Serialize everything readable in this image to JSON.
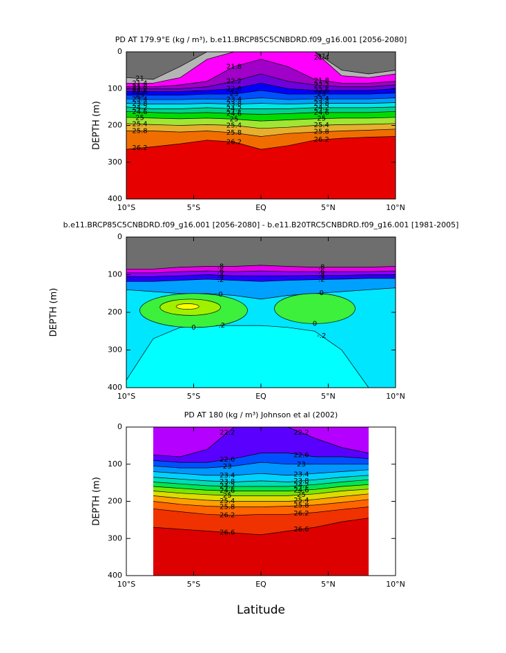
{
  "chart_data": [
    {
      "type": "contour",
      "title": "PD AT 179.9°E (kg / m³), b.e11.BRCP85C5CNBDRD.f09_g16.001 [2056-2080]",
      "ylabel": "DEPTH (m)",
      "xlim": [
        -10,
        10
      ],
      "ylim": [
        0,
        400
      ],
      "y_inverted": true,
      "xticks": [
        {
          "value": -10,
          "label": "10°S"
        },
        {
          "value": -5,
          "label": "5°S"
        },
        {
          "value": 0,
          "label": "EQ"
        },
        {
          "value": 5,
          "label": "5°N"
        },
        {
          "value": 10,
          "label": "10°N"
        }
      ],
      "yticks": [
        0,
        100,
        200,
        300,
        400
      ],
      "top_color": "#6e6e6e",
      "x": [
        -10,
        -8,
        -6,
        -4,
        -2,
        0,
        2,
        4,
        6,
        8,
        10
      ],
      "contours": [
        {
          "level": 21,
          "color": "#b4b4b4",
          "depth": [
            70,
            75,
            40,
            0,
            0,
            0,
            0,
            0,
            50,
            60,
            50
          ]
        },
        {
          "level": 21.4,
          "color": "#ff00ff",
          "depth": [
            85,
            85,
            70,
            20,
            0,
            0,
            0,
            0,
            65,
            70,
            60
          ]
        },
        {
          "level": 21.8,
          "color": "#a000c8",
          "depth": [
            95,
            95,
            90,
            80,
            40,
            20,
            40,
            75,
            85,
            85,
            80
          ]
        },
        {
          "level": 22.2,
          "color": "#6e00dc",
          "depth": [
            100,
            100,
            100,
            95,
            80,
            60,
            80,
            90,
            95,
            95,
            90
          ]
        },
        {
          "level": 22.6,
          "color": "#0000ff",
          "depth": [
            108,
            108,
            108,
            105,
            100,
            85,
            100,
            105,
            105,
            105,
            100
          ]
        },
        {
          "level": 23,
          "color": "#0050ff",
          "depth": [
            118,
            118,
            118,
            115,
            115,
            105,
            115,
            115,
            115,
            115,
            112
          ]
        },
        {
          "level": 23.4,
          "color": "#00a0ff",
          "depth": [
            128,
            130,
            130,
            128,
            130,
            125,
            130,
            128,
            128,
            128,
            125
          ]
        },
        {
          "level": 23.8,
          "color": "#00e6e6",
          "depth": [
            140,
            142,
            142,
            140,
            142,
            140,
            142,
            140,
            140,
            140,
            138
          ]
        },
        {
          "level": 24.2,
          "color": "#00d28c",
          "depth": [
            150,
            155,
            155,
            152,
            155,
            155,
            155,
            152,
            152,
            152,
            150
          ]
        },
        {
          "level": 24.6,
          "color": "#00dc00",
          "depth": [
            162,
            165,
            167,
            165,
            168,
            170,
            168,
            165,
            165,
            165,
            162
          ]
        },
        {
          "level": 25,
          "color": "#a0e632",
          "depth": [
            178,
            180,
            182,
            180,
            183,
            188,
            185,
            182,
            180,
            180,
            178
          ]
        },
        {
          "level": 25.4,
          "color": "#e6af2d",
          "depth": [
            195,
            198,
            200,
            198,
            200,
            208,
            205,
            200,
            198,
            197,
            195
          ]
        },
        {
          "level": 25.8,
          "color": "#f06e00",
          "depth": [
            215,
            215,
            218,
            215,
            220,
            230,
            222,
            218,
            215,
            213,
            210
          ]
        },
        {
          "level": 26.2,
          "color": "#e60000",
          "depth": [
            265,
            258,
            250,
            240,
            245,
            265,
            255,
            240,
            235,
            232,
            230
          ]
        }
      ]
    },
    {
      "type": "contour",
      "title": "b.e11.BRCP85C5CNBDRD.f09_g16.001 [2056-2080] - b.e11.B20TRC5CNBDRD.f09_g16.001 [1981-2005]",
      "ylabel": "DEPTH (m)",
      "xlim": [
        -10,
        10
      ],
      "ylim": [
        0,
        400
      ],
      "y_inverted": true,
      "xticks": [
        {
          "value": -10,
          "label": "10°S"
        },
        {
          "value": -5,
          "label": "5°S"
        },
        {
          "value": 0,
          "label": "EQ"
        },
        {
          "value": 5,
          "label": "5°N"
        },
        {
          "value": 10,
          "label": "10°N"
        }
      ],
      "yticks": [
        0,
        100,
        200,
        300,
        400
      ],
      "top_color": "#6e6e6e",
      "x": [
        -10,
        -8,
        -6,
        -4,
        -2,
        0,
        2,
        4,
        6,
        8,
        10
      ],
      "contours": [
        {
          "level": 0.8,
          "level_label": ".8",
          "color": "#e600e6",
          "depth": [
            85,
            85,
            80,
            78,
            78,
            75,
            78,
            80,
            80,
            80,
            78
          ]
        },
        {
          "level": 0.6,
          "level_label": ".6",
          "color": "#8c00ff",
          "depth": [
            95,
            95,
            92,
            90,
            92,
            90,
            92,
            92,
            92,
            92,
            90
          ]
        },
        {
          "level": 0.4,
          "level_label": ".4",
          "color": "#2800ff",
          "depth": [
            105,
            105,
            103,
            100,
            103,
            103,
            103,
            102,
            102,
            100,
            100
          ]
        },
        {
          "level": 0.2,
          "level_label": ".2",
          "color": "#00a0ff",
          "depth": [
            118,
            118,
            115,
            112,
            115,
            118,
            115,
            113,
            112,
            110,
            110
          ]
        },
        {
          "level": 0,
          "color": "#00e6ff",
          "depth": [
            140,
            145,
            150,
            150,
            155,
            165,
            155,
            150,
            145,
            140,
            135
          ]
        },
        {
          "level": -0.2,
          "level_label": "-.2",
          "color": "#00ffff",
          "depth": [
            380,
            270,
            240,
            235,
            235,
            235,
            240,
            250,
            300,
            400,
            400
          ]
        }
      ],
      "blobs": [
        {
          "level": 0,
          "color": "#3cf03c",
          "x": [
            -9,
            -1
          ],
          "y": [
            150,
            240
          ]
        },
        {
          "level": 0,
          "color": "#3cf03c",
          "x": [
            1,
            7
          ],
          "y": [
            150,
            230
          ]
        },
        {
          "level": 0.2,
          "color": "#a0f000",
          "x": [
            -7.5,
            -3
          ],
          "y": [
            165,
            208
          ]
        },
        {
          "level": 0.4,
          "color": "#ffff00",
          "x": [
            -6.3,
            -4.6
          ],
          "y": [
            177,
            192
          ]
        }
      ]
    },
    {
      "type": "contour",
      "title": "PD AT 180 (kg / m³) Johnson et al (2002)",
      "ylabel": "DEPTH (m)",
      "xlabel": "Latitude",
      "xlim": [
        -10,
        10
      ],
      "ylim": [
        0,
        400
      ],
      "y_inverted": true,
      "xticks": [
        {
          "value": -10,
          "label": "10°S"
        },
        {
          "value": -5,
          "label": "5°S"
        },
        {
          "value": 0,
          "label": "EQ"
        },
        {
          "value": 5,
          "label": "5°N"
        },
        {
          "value": 10,
          "label": "10°N"
        }
      ],
      "yticks": [
        0,
        100,
        200,
        300,
        400
      ],
      "top_color": "#b400ff",
      "x": [
        -8,
        -6,
        -4,
        -2,
        0,
        2,
        4,
        6,
        8
      ],
      "contours": [
        {
          "level": 22.2,
          "color": "#5a00ff",
          "depth": [
            75,
            80,
            60,
            0,
            0,
            0,
            30,
            55,
            70
          ]
        },
        {
          "level": 22.6,
          "color": "#0050ff",
          "depth": [
            90,
            95,
            95,
            85,
            70,
            70,
            80,
            80,
            85
          ]
        },
        {
          "level": 23,
          "color": "#0096ff",
          "depth": [
            105,
            110,
            110,
            105,
            95,
            100,
            100,
            100,
            100
          ]
        },
        {
          "level": 23.4,
          "color": "#00d2ff",
          "depth": [
            120,
            125,
            130,
            130,
            125,
            130,
            125,
            120,
            115
          ]
        },
        {
          "level": 23.8,
          "color": "#00dcb4",
          "depth": [
            135,
            140,
            145,
            148,
            145,
            148,
            142,
            135,
            130
          ]
        },
        {
          "level": 24.2,
          "color": "#00e650",
          "depth": [
            148,
            153,
            158,
            160,
            160,
            160,
            155,
            148,
            142
          ]
        },
        {
          "level": 24.6,
          "color": "#78e600",
          "depth": [
            160,
            165,
            170,
            172,
            172,
            172,
            168,
            160,
            155
          ]
        },
        {
          "level": 25,
          "color": "#dcdc00",
          "depth": [
            172,
            178,
            182,
            185,
            185,
            185,
            180,
            172,
            167
          ]
        },
        {
          "level": 25.4,
          "color": "#ffa000",
          "depth": [
            185,
            192,
            197,
            200,
            200,
            200,
            195,
            187,
            180
          ]
        },
        {
          "level": 25.8,
          "color": "#ff6400",
          "depth": [
            200,
            208,
            213,
            215,
            215,
            213,
            210,
            203,
            195
          ]
        },
        {
          "level": 26.2,
          "color": "#f03200",
          "depth": [
            220,
            228,
            235,
            238,
            235,
            235,
            230,
            222,
            215
          ]
        },
        {
          "level": 26.6,
          "color": "#dc0000",
          "depth": [
            270,
            275,
            280,
            285,
            290,
            280,
            270,
            255,
            245
          ]
        }
      ]
    }
  ]
}
